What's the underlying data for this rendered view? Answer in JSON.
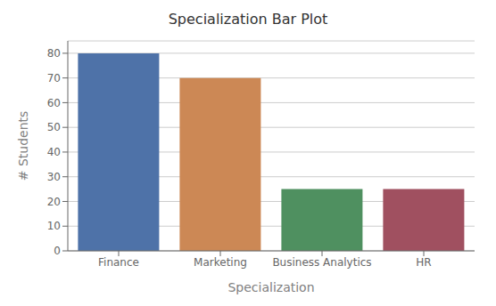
{
  "chart_data": {
    "type": "bar",
    "title": "Specialization Bar Plot",
    "xlabel": "Specialization",
    "ylabel": "# Students",
    "categories": [
      "Finance",
      "Marketing",
      "Business Analytics",
      "HR"
    ],
    "values": [
      80,
      70,
      25,
      25
    ],
    "colors": [
      "#4e72a8",
      "#cc8855",
      "#4f9060",
      "#a05060"
    ],
    "ylim": [
      0,
      85
    ],
    "yticks": [
      0,
      10,
      20,
      30,
      40,
      50,
      60,
      70,
      80
    ],
    "grid": true
  }
}
